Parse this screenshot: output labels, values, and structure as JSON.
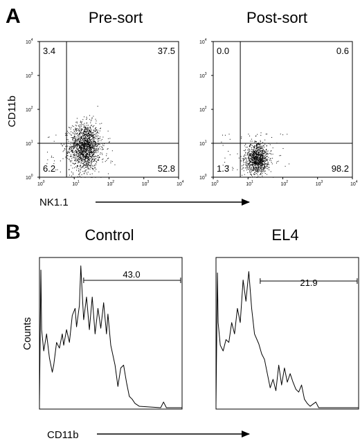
{
  "panel_a": {
    "letter": "A",
    "ylabel": "CD11b",
    "xlabel": "NK1.1"
  },
  "panel_b": {
    "letter": "B",
    "ylabel": "Counts",
    "xlabel": "CD11b"
  },
  "chart_data": [
    {
      "type": "scatter",
      "title": "Pre-sort",
      "xlabel": "NK1.1",
      "ylabel": "CD11b",
      "xscale": "log",
      "yscale": "log",
      "xlim": [
        1,
        10000
      ],
      "ylim": [
        1,
        10000
      ],
      "x_ticks": [
        "10^0",
        "10^1",
        "10^2",
        "10^3",
        "10^4"
      ],
      "y_ticks": [
        "10^0",
        "10^1",
        "10^2",
        "10^3",
        "10^4"
      ],
      "gate_x": 6,
      "gate_y": 10,
      "quadrants": {
        "top_left": "3.4",
        "top_right": "37.5",
        "bottom_left": "6.2",
        "bottom_right": "52.8"
      },
      "cluster": {
        "x_center": 20,
        "y_center": 8,
        "x_spread_log": 0.22,
        "y_spread_log": 0.35,
        "n_points": 1500
      }
    },
    {
      "type": "scatter",
      "title": "Post-sort",
      "xlabel": "NK1.1",
      "ylabel": "CD11b",
      "xscale": "log",
      "yscale": "log",
      "xlim": [
        1,
        10000
      ],
      "ylim": [
        1,
        10000
      ],
      "x_ticks": [
        "10^0",
        "10^1",
        "10^2",
        "10^3",
        "10^4"
      ],
      "y_ticks": [
        "10^0",
        "10^1",
        "10^2",
        "10^3",
        "10^4"
      ],
      "gate_x": 6,
      "gate_y": 10,
      "quadrants": {
        "top_left": "0.0",
        "top_right": "0.6",
        "bottom_left": "1.3",
        "bottom_right": "98.2"
      },
      "cluster": {
        "x_center": 18,
        "y_center": 3.5,
        "x_spread_log": 0.17,
        "y_spread_log": 0.22,
        "n_points": 1000
      }
    },
    {
      "type": "histogram",
      "title": "Control",
      "xlabel": "CD11b",
      "ylabel": "Counts",
      "gate_label": "43.0",
      "gate_range": [
        0.31,
        0.99
      ],
      "profile": [
        [
          0.0,
          0.03
        ],
        [
          0.01,
          0.97
        ],
        [
          0.015,
          0.55
        ],
        [
          0.03,
          0.4
        ],
        [
          0.05,
          0.52
        ],
        [
          0.07,
          0.35
        ],
        [
          0.09,
          0.25
        ],
        [
          0.1,
          0.3
        ],
        [
          0.12,
          0.46
        ],
        [
          0.14,
          0.42
        ],
        [
          0.16,
          0.52
        ],
        [
          0.17,
          0.44
        ],
        [
          0.19,
          0.55
        ],
        [
          0.21,
          0.46
        ],
        [
          0.23,
          0.65
        ],
        [
          0.25,
          0.7
        ],
        [
          0.26,
          0.57
        ],
        [
          0.28,
          0.72
        ],
        [
          0.29,
          1.0
        ],
        [
          0.3,
          0.8
        ],
        [
          0.31,
          0.62
        ],
        [
          0.33,
          0.78
        ],
        [
          0.35,
          0.55
        ],
        [
          0.37,
          0.78
        ],
        [
          0.39,
          0.52
        ],
        [
          0.41,
          0.7
        ],
        [
          0.43,
          0.56
        ],
        [
          0.45,
          0.74
        ],
        [
          0.47,
          0.52
        ],
        [
          0.48,
          0.66
        ],
        [
          0.5,
          0.44
        ],
        [
          0.53,
          0.3
        ],
        [
          0.55,
          0.15
        ],
        [
          0.57,
          0.28
        ],
        [
          0.59,
          0.3
        ],
        [
          0.61,
          0.18
        ],
        [
          0.63,
          0.08
        ],
        [
          0.65,
          0.06
        ],
        [
          0.67,
          0.03
        ],
        [
          0.7,
          0.01
        ],
        [
          0.85,
          0.0
        ],
        [
          0.87,
          0.04
        ],
        [
          0.89,
          0.0
        ],
        [
          1.0,
          0.0
        ]
      ]
    },
    {
      "type": "histogram",
      "title": "EL4",
      "xlabel": "CD11b",
      "ylabel": "Counts",
      "gate_label": "21.9",
      "gate_range": [
        0.31,
        0.99
      ],
      "profile": [
        [
          0.0,
          0.02
        ],
        [
          0.01,
          0.95
        ],
        [
          0.015,
          0.6
        ],
        [
          0.03,
          0.44
        ],
        [
          0.05,
          0.4
        ],
        [
          0.07,
          0.48
        ],
        [
          0.09,
          0.46
        ],
        [
          0.11,
          0.6
        ],
        [
          0.13,
          0.52
        ],
        [
          0.15,
          0.7
        ],
        [
          0.17,
          0.6
        ],
        [
          0.19,
          0.9
        ],
        [
          0.21,
          0.75
        ],
        [
          0.23,
          0.96
        ],
        [
          0.25,
          0.7
        ],
        [
          0.27,
          0.52
        ],
        [
          0.3,
          0.45
        ],
        [
          0.32,
          0.38
        ],
        [
          0.34,
          0.34
        ],
        [
          0.36,
          0.24
        ],
        [
          0.38,
          0.14
        ],
        [
          0.4,
          0.2
        ],
        [
          0.42,
          0.12
        ],
        [
          0.44,
          0.3
        ],
        [
          0.46,
          0.16
        ],
        [
          0.48,
          0.28
        ],
        [
          0.5,
          0.18
        ],
        [
          0.52,
          0.24
        ],
        [
          0.54,
          0.18
        ],
        [
          0.56,
          0.13
        ],
        [
          0.58,
          0.11
        ],
        [
          0.6,
          0.16
        ],
        [
          0.62,
          0.06
        ],
        [
          0.64,
          0.03
        ],
        [
          0.66,
          0.01
        ],
        [
          0.7,
          0.04
        ],
        [
          0.72,
          0.0
        ],
        [
          1.0,
          0.0
        ]
      ]
    }
  ]
}
